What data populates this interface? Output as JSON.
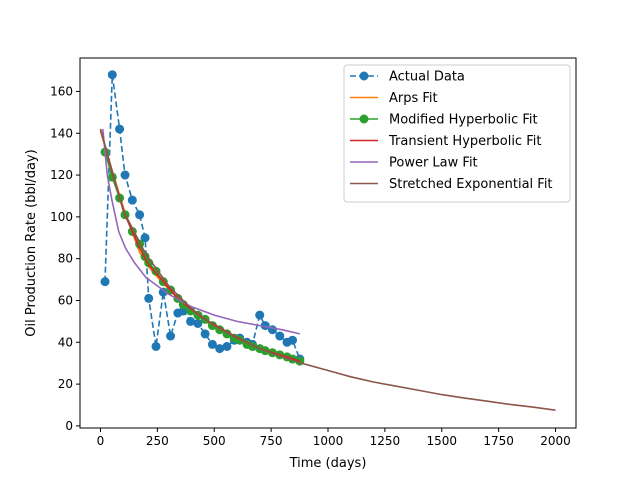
{
  "chart_data": {
    "type": "line",
    "title": "",
    "xlabel": "Time (days)",
    "ylabel": "Oil Production Rate (bbl/day)",
    "xlim": [
      -90,
      2090
    ],
    "ylim": [
      -1,
      176
    ],
    "xticks": [
      0,
      250,
      500,
      750,
      1000,
      1250,
      1500,
      1750,
      2000
    ],
    "yticks": [
      0,
      20,
      40,
      60,
      80,
      100,
      120,
      140,
      160
    ],
    "grid": false,
    "legend_position": "top-right",
    "series": [
      {
        "name": "Actual Data",
        "color": "#1f77b4",
        "style": "dashed-markers",
        "x": [
          20,
          52,
          84,
          108,
          140,
          172,
          196,
          212,
          244,
          276,
          308,
          340,
          364,
          396,
          428,
          460,
          492,
          524,
          556,
          588,
          612,
          644,
          668,
          700,
          724,
          756,
          788,
          820,
          844,
          876
        ],
        "y": [
          69,
          168,
          142,
          120,
          108,
          101,
          90,
          61,
          38,
          64,
          43,
          54,
          55,
          50,
          49,
          44,
          39,
          37,
          38,
          41,
          42,
          40,
          39,
          53,
          48,
          46,
          43,
          40,
          41,
          32
        ]
      },
      {
        "name": "Arps Fit",
        "color": "#ff7f0e",
        "style": "line",
        "x": [
          0,
          52,
          108,
          172,
          212,
          276,
          340,
          396,
          460,
          524,
          588,
          644,
          700,
          756,
          820,
          876
        ],
        "y": [
          141,
          122,
          102,
          83,
          76,
          68,
          61,
          55,
          50,
          46,
          42,
          40,
          37,
          35,
          33,
          31
        ]
      },
      {
        "name": "Modified Hyperbolic Fit",
        "color": "#2ca02c",
        "style": "line-markers",
        "x": [
          20,
          52,
          84,
          108,
          140,
          172,
          196,
          212,
          244,
          276,
          308,
          340,
          364,
          396,
          428,
          460,
          492,
          524,
          556,
          588,
          612,
          644,
          668,
          700,
          724,
          756,
          788,
          820,
          844,
          876
        ],
        "y": [
          131,
          119,
          109,
          101,
          93,
          87,
          81,
          78,
          74,
          69,
          65,
          61,
          58,
          55,
          53,
          51,
          48,
          46,
          44,
          42,
          41,
          39,
          38,
          37,
          36,
          35,
          34,
          33,
          32,
          31
        ]
      },
      {
        "name": "Transient Hyperbolic Fit",
        "color": "#d62728",
        "style": "line",
        "x": [
          0,
          52,
          108,
          172,
          212,
          276,
          340,
          396,
          460,
          524,
          588,
          644,
          700,
          756,
          820,
          876
        ],
        "y": [
          142,
          121,
          101,
          85,
          77,
          69,
          61,
          56,
          51,
          47,
          43,
          40,
          37,
          35,
          33,
          31
        ]
      },
      {
        "name": "Power Law Fit",
        "color": "#9467bd",
        "style": "line",
        "x": [
          10,
          30,
          50,
          80,
          110,
          150,
          200,
          250,
          300,
          350,
          400,
          450,
          500,
          600,
          700,
          800,
          876
        ],
        "y": [
          142,
          120,
          108,
          93,
          85,
          78,
          71,
          67,
          63,
          60,
          57,
          55,
          53,
          50,
          48,
          46,
          44
        ]
      },
      {
        "name": "Stretched Exponential Fit",
        "color": "#8c564b",
        "style": "line",
        "x": [
          0,
          100,
          200,
          300,
          400,
          500,
          600,
          700,
          800,
          900,
          1000,
          1100,
          1200,
          1300,
          1400,
          1500,
          1600,
          1700,
          1800,
          1900,
          2000
        ],
        "y": [
          142,
          103,
          82,
          67,
          56,
          48,
          42,
          37,
          33,
          29.5,
          26.5,
          23.5,
          21,
          19,
          17,
          15,
          13.3,
          11.8,
          10.3,
          9,
          7.5
        ]
      }
    ]
  }
}
